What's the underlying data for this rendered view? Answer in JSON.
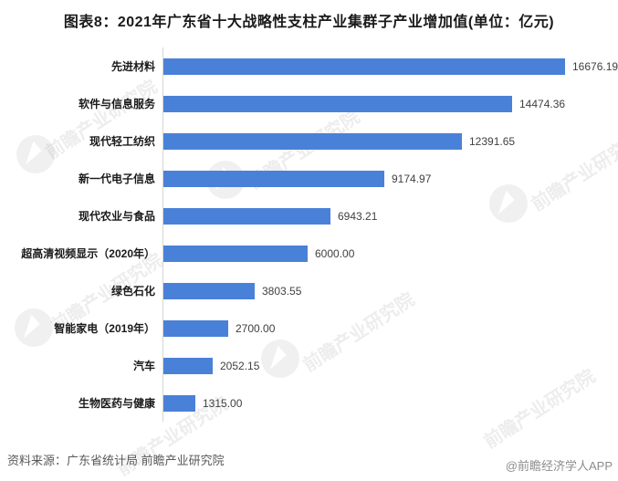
{
  "title": "图表8：2021年广东省十大战略性支柱产业集群子产业增加值(单位：亿元)",
  "chart_data": {
    "type": "bar",
    "orientation": "horizontal",
    "title": "图表8：2021年广东省十大战略性支柱产业集群子产业增加值",
    "unit": "亿元",
    "categories": [
      "先进材料",
      "软件与信息服务",
      "现代轻工纺织",
      "新一代电子信息",
      "现代农业与食品",
      "超高清视频显示（2020年）",
      "绿色石化",
      "智能家电（2019年）",
      "汽车",
      "生物医药与健康"
    ],
    "values": [
      16676.19,
      14474.36,
      12391.65,
      9174.97,
      6943.21,
      6000.0,
      3803.55,
      2700.0,
      2052.15,
      1315.0
    ],
    "value_labels": [
      "16676.19",
      "14474.36",
      "12391.65",
      "9174.97",
      "6943.21",
      "6000.00",
      "3803.55",
      "2700.00",
      "2052.15",
      "1315.00"
    ],
    "xlim": [
      0,
      16676.19
    ],
    "grid": false,
    "legend": false,
    "bar_color": "#4a81d8"
  },
  "watermark": {
    "text": "前瞻产业研究院"
  },
  "footer": {
    "source": "资料来源：广东省统计局 前瞻产业研究院",
    "credit": "@前瞻经济学人APP"
  }
}
